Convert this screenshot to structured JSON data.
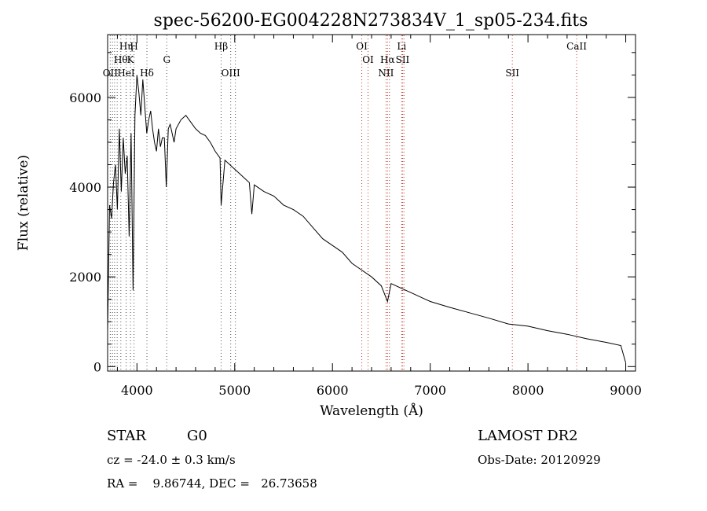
{
  "chart_data": {
    "type": "line",
    "title": "spec-56200-EG004228N273834V_1_sp05-234.fits",
    "xlabel": "Wavelength (Å)",
    "ylabel": "Flux (relative)",
    "xlim": [
      3700,
      9100
    ],
    "ylim": [
      -100,
      7400
    ],
    "xticks": [
      4000,
      5000,
      6000,
      7000,
      8000,
      9000
    ],
    "yticks": [
      0,
      2000,
      4000,
      6000
    ],
    "grid": false,
    "series": [
      {
        "x": [
          3700,
          3720,
          3740,
          3760,
          3780,
          3800,
          3820,
          3840,
          3860,
          3880,
          3900,
          3920,
          3940,
          3960,
          3980,
          4000,
          4020,
          4040,
          4060,
          4080,
          4100,
          4120,
          4140,
          4160,
          4180,
          4200,
          4220,
          4240,
          4260,
          4280,
          4300,
          4320,
          4340,
          4360,
          4380,
          4400,
          4450,
          4500,
          4550,
          4600,
          4650,
          4700,
          4750,
          4800,
          4850,
          4861,
          4900,
          4950,
          5000,
          5050,
          5100,
          5150,
          5175,
          5200,
          5300,
          5400,
          5500,
          5600,
          5700,
          5800,
          5900,
          6000,
          6100,
          6200,
          6300,
          6400,
          6500,
          6563,
          6600,
          6700,
          6800,
          6900,
          7000,
          7200,
          7400,
          7600,
          7800,
          8000,
          8200,
          8400,
          8600,
          8800,
          8950,
          9000
        ],
        "y": [
          800,
          3600,
          3300,
          4100,
          4500,
          3500,
          5300,
          3900,
          5100,
          4300,
          4700,
          2900,
          5200,
          1700,
          5600,
          6500,
          6100,
          5600,
          6400,
          5800,
          5200,
          5500,
          5700,
          5300,
          5000,
          4800,
          5300,
          4900,
          5100,
          5100,
          4000,
          5300,
          5400,
          5200,
          5000,
          5300,
          5500,
          5600,
          5450,
          5300,
          5200,
          5150,
          5000,
          4800,
          4650,
          3600,
          4600,
          4500,
          4400,
          4300,
          4200,
          4100,
          3400,
          4050,
          3900,
          3800,
          3600,
          3500,
          3350,
          3100,
          2850,
          2700,
          2550,
          2300,
          2150,
          2000,
          1800,
          1450,
          1850,
          1750,
          1650,
          1550,
          1450,
          1320,
          1200,
          1080,
          950,
          900,
          800,
          720,
          620,
          540,
          470,
          80
        ]
      }
    ],
    "lines": [
      {
        "wavelength": 3727,
        "label": "OII",
        "row": 3
      },
      {
        "wavelength": 3750,
        "label": "",
        "row": 0
      },
      {
        "wavelength": 3771,
        "label": "",
        "row": 0
      },
      {
        "wavelength": 3798,
        "label": "",
        "row": 0
      },
      {
        "wavelength": 3835,
        "label": "Hθ",
        "row": 2
      },
      {
        "wavelength": 3889,
        "label": "HeI",
        "row": 3
      },
      {
        "wavelength": 3934,
        "label": "K",
        "row": 2
      },
      {
        "wavelength": 3970,
        "label": "H",
        "row": 1
      },
      {
        "wavelength": 3890,
        "label": "Hη",
        "row": 1
      },
      {
        "wavelength": 4102,
        "label": "Hδ",
        "row": 3
      },
      {
        "wavelength": 4305,
        "label": "G",
        "row": 2
      },
      {
        "wavelength": 4861,
        "label": "Hβ",
        "row": 1
      },
      {
        "wavelength": 4959,
        "label": "OIII",
        "row": 3
      },
      {
        "wavelength": 5007,
        "label": "",
        "row": 0
      },
      {
        "wavelength": 6300,
        "label": "OI",
        "row": 1
      },
      {
        "wavelength": 6364,
        "label": "OI",
        "row": 2
      },
      {
        "wavelength": 6548,
        "label": "NII",
        "row": 3
      },
      {
        "wavelength": 6563,
        "label": "Hα",
        "row": 2
      },
      {
        "wavelength": 6583,
        "label": "",
        "row": 0
      },
      {
        "wavelength": 6708,
        "label": "Li",
        "row": 1
      },
      {
        "wavelength": 6717,
        "label": "SII",
        "row": 2
      },
      {
        "wavelength": 6731,
        "label": "",
        "row": 0
      },
      {
        "wavelength": 7840,
        "label": "SII",
        "row": 3
      },
      {
        "wavelength": 8498,
        "label": "CaII",
        "row": 1
      }
    ]
  },
  "info": {
    "class": "STAR",
    "subclass": "G0",
    "survey": "LAMOST DR2",
    "cz": "cz = -24.0 ± 0.3 km/s",
    "obs_date": "Obs-Date: 20120929",
    "coords": "RA =    9.86744, DEC =   26.73658"
  }
}
